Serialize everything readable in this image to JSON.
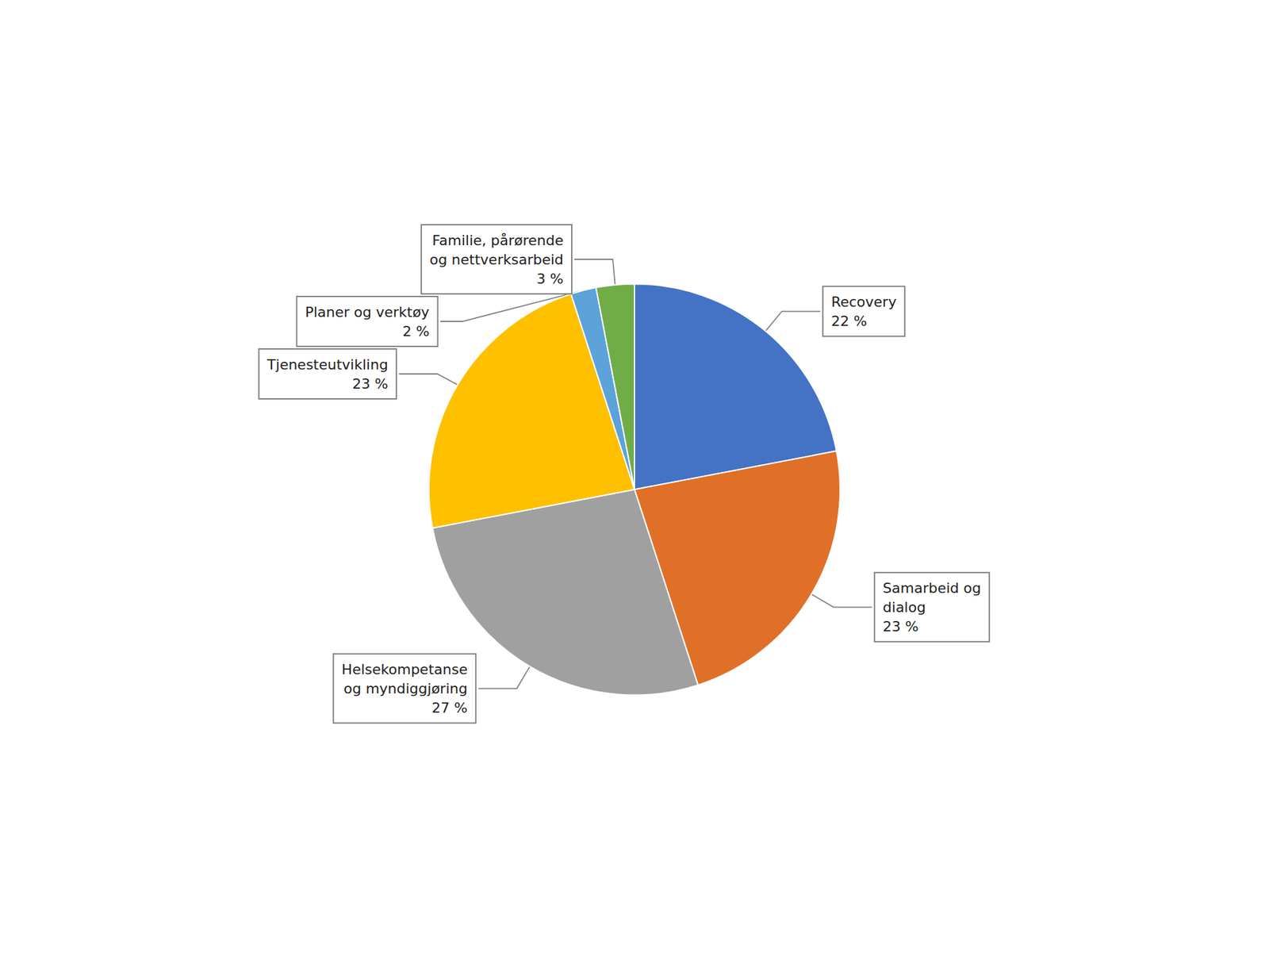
{
  "chart_data": {
    "type": "pie",
    "categories": [
      "Recovery\n22 %",
      "Samarbeid og\ndialog\n23 %",
      "Helsekompetanse\nog myndiggjøring\n27 %",
      "Tjenesteutvikling\n23 %",
      "Planer og verktøy\n2 %",
      "Familie, pårørende\nog nettverksarbeid\n3 %"
    ],
    "values": [
      22,
      23,
      27,
      23,
      2,
      3
    ],
    "colors": [
      "#4472C4",
      "#E07028",
      "#A0A0A0",
      "#FFC000",
      "#5BA3D9",
      "#70AD47"
    ]
  }
}
